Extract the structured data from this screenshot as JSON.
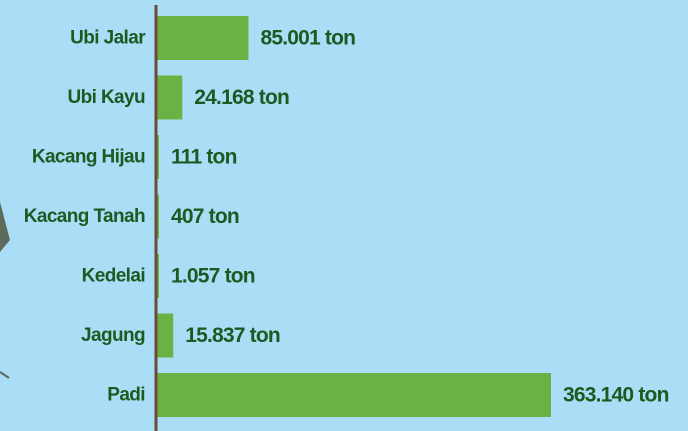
{
  "chart_data": {
    "type": "bar",
    "orientation": "horizontal",
    "categories": [
      "Ubi Jalar",
      "Ubi Kayu",
      "Kacang Hijau",
      "Kacang Tanah",
      "Kedelai",
      "Jagung",
      "Padi"
    ],
    "values": [
      85001,
      24168,
      111,
      407,
      1057,
      15837,
      363140
    ],
    "value_labels": [
      "85.001 ton",
      "24.168 ton",
      "111 ton",
      "407 ton",
      "1.057 ton",
      "15.837 ton",
      "363.140 ton"
    ],
    "title": "",
    "xlabel": "",
    "ylabel": "",
    "xlim": [
      0,
      363140
    ],
    "grid": false,
    "legend": "none",
    "colors": {
      "background": "#a9def6",
      "bar": "#6bb144",
      "axis": "#6b4a3a",
      "text": "#1d5a22",
      "decoration": "#5e6b5c"
    }
  }
}
